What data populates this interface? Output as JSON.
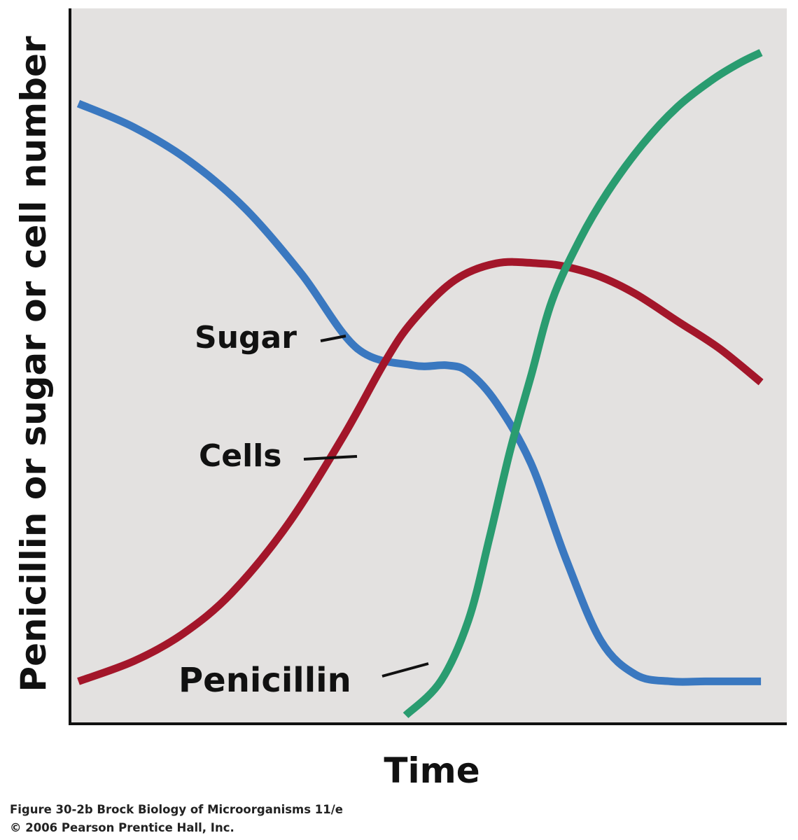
{
  "chart_data": {
    "type": "line",
    "xlabel": "Time",
    "ylabel": "Penicillin or sugar or cell number",
    "xlim": [
      0,
      100
    ],
    "ylim": [
      0,
      100
    ],
    "grid": false,
    "background_color": "#e3e1e0",
    "series": [
      {
        "name": "Sugar",
        "color": "#3a78c0",
        "x": [
          0,
          8,
          16,
          24,
          32,
          40,
          48,
          53,
          56,
          60,
          65,
          70,
          75,
          80,
          85,
          90,
          95,
          98
        ],
        "y": [
          90,
          86.5,
          81.5,
          74.5,
          65,
          54,
          51.5,
          51.5,
          50.5,
          46,
          37,
          23,
          11,
          6,
          5,
          5,
          5,
          5
        ]
      },
      {
        "name": "Cells",
        "color": "#a3162a",
        "x": [
          0,
          8,
          15,
          22,
          30,
          38,
          44,
          48,
          54,
          60,
          66,
          70,
          75,
          80,
          86,
          92,
          98
        ],
        "y": [
          5,
          8,
          12,
          18,
          28,
          41,
          52,
          58,
          64,
          66.5,
          66.5,
          66,
          64.5,
          62,
          58,
          54,
          49
        ]
      },
      {
        "name": "Penicillin",
        "color": "#2a9c70",
        "x": [
          47,
          52,
          56,
          59,
          62,
          65,
          68,
          72,
          76,
          81,
          86,
          91,
          95,
          98
        ],
        "y": [
          0,
          5,
          14,
          26,
          39,
          50,
          61,
          70,
          77,
          84,
          89.5,
          93.5,
          96,
          97.5
        ]
      }
    ],
    "annotations": [
      "Sugar",
      "Cells",
      "Penicillin"
    ]
  },
  "caption": {
    "line1": "Figure 30-2b  Brock Biology of Microorganisms 11/e",
    "line2": "© 2006 Pearson Prentice Hall, Inc."
  }
}
